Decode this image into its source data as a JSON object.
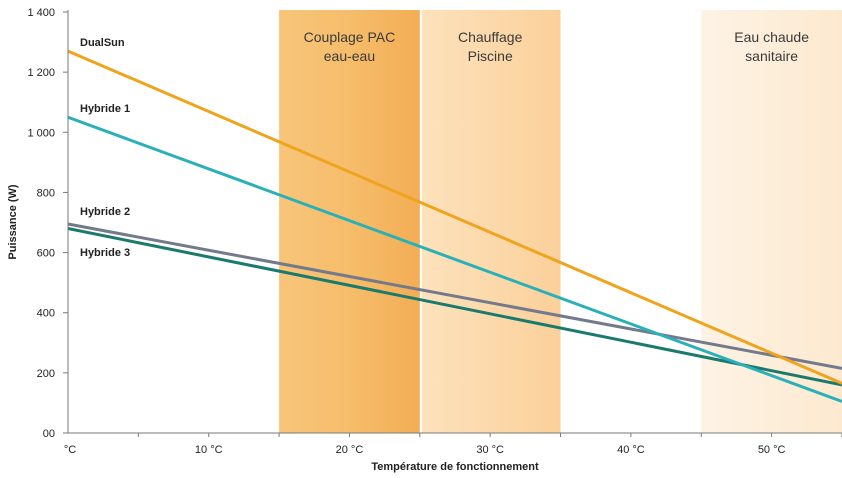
{
  "chart_data": {
    "type": "line",
    "title": "",
    "xlabel": "Température de fonctionnement",
    "ylabel": "Puissance (W)",
    "xlim": [
      0,
      55
    ],
    "ylim": [
      0,
      1400
    ],
    "x_ticks": [
      0,
      10,
      20,
      30,
      40,
      50
    ],
    "x_tick_labels": [
      "°C",
      "10 °C",
      "20 °C",
      "30 °C",
      "40 °C",
      "50 °C"
    ],
    "y_ticks": [
      0,
      200,
      400,
      600,
      800,
      1000,
      1200,
      1400
    ],
    "y_tick_labels": [
      "00",
      "200",
      "400",
      "600",
      "800",
      "1 000",
      "1 200",
      "1 400"
    ],
    "grid": false,
    "legend": "inline labels at left",
    "bands": [
      {
        "x0": 15,
        "x1": 25,
        "label_lines": [
          "Couplage PAC",
          "eau-eau"
        ],
        "color": "#f5b862"
      },
      {
        "x0": 25,
        "x1": 35,
        "label_lines": [
          "Chauffage",
          "Piscine"
        ],
        "color": "#fbd8a4"
      },
      {
        "x0": 45,
        "x1": 55,
        "label_lines": [
          "Eau chaude",
          "sanitaire"
        ],
        "color": "#fdecd5"
      }
    ],
    "series": [
      {
        "name": "DualSun",
        "x": [
          0,
          55
        ],
        "values": [
          1270,
          165
        ],
        "color": "#f0a41e"
      },
      {
        "name": "Hybride 1",
        "x": [
          0,
          55
        ],
        "values": [
          1050,
          105
        ],
        "color": "#2ab0b8"
      },
      {
        "name": "Hybride 2",
        "x": [
          0,
          55
        ],
        "values": [
          695,
          215
        ],
        "color": "#727a8c"
      },
      {
        "name": "Hybride 3",
        "x": [
          0,
          55
        ],
        "values": [
          680,
          160
        ],
        "color": "#1b7a6e"
      }
    ]
  }
}
